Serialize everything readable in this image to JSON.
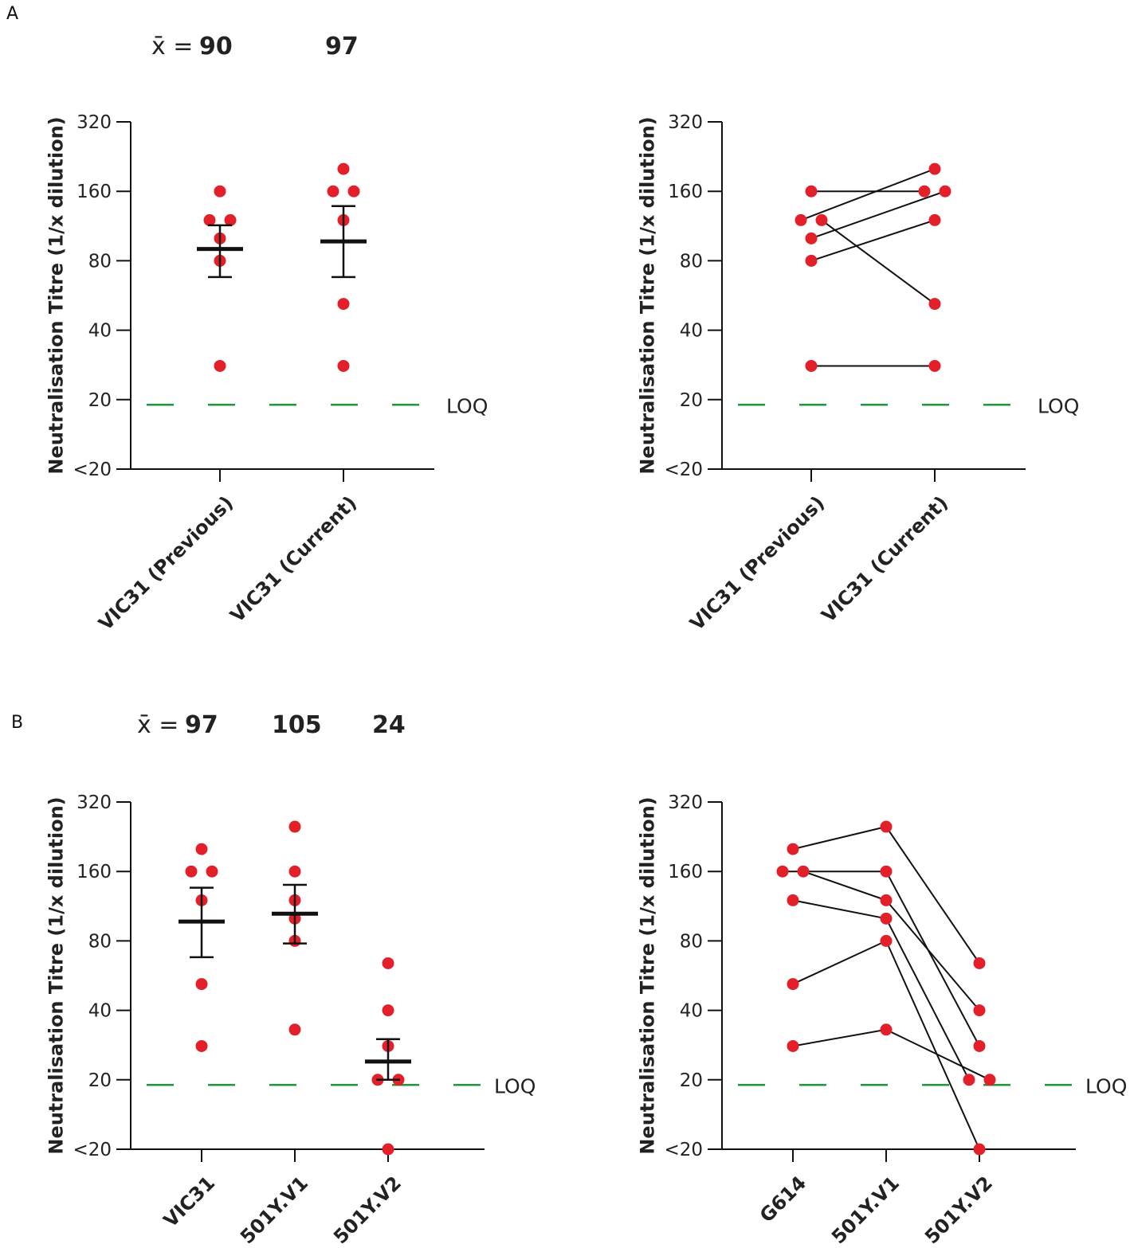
{
  "panels": [
    {
      "label": "A"
    },
    {
      "label": "B"
    }
  ],
  "means": {
    "symbol": "x̄ =",
    "A": [
      "90",
      "97"
    ],
    "B": [
      "97",
      "105",
      "24"
    ]
  },
  "colors": {
    "point": "#e3202a",
    "loq": "#1f9a3a",
    "axis": "#111111",
    "line": "#111111"
  },
  "chart_data": [
    {
      "id": "A-left",
      "type": "scatter",
      "ylabel": "Neutralisation Titre (1/x dilution)",
      "yscale": "log2",
      "yticks": [
        {
          "v": 10,
          "label": "<20"
        },
        {
          "v": 20,
          "label": "20"
        },
        {
          "v": 40,
          "label": "40"
        },
        {
          "v": 80,
          "label": "80"
        },
        {
          "v": 160,
          "label": "160"
        },
        {
          "v": 320,
          "label": "320"
        }
      ],
      "ylim": [
        10,
        320
      ],
      "loq": {
        "value": 19,
        "label": "LOQ"
      },
      "categories": [
        "VIC31 (Previous)",
        "VIC31 (Current)"
      ],
      "points": [
        [
          {
            "v": 160,
            "dx": 0
          },
          {
            "v": 120,
            "dx": -1
          },
          {
            "v": 120,
            "dx": 1
          },
          {
            "v": 100,
            "dx": 0
          },
          {
            "v": 80,
            "dx": 0
          },
          {
            "v": 28,
            "dx": 0
          }
        ],
        [
          {
            "v": 200,
            "dx": 0
          },
          {
            "v": 160,
            "dx": -1
          },
          {
            "v": 160,
            "dx": 1
          },
          {
            "v": 120,
            "dx": 0
          },
          {
            "v": 52,
            "dx": 0
          },
          {
            "v": 28,
            "dx": 0
          }
        ]
      ],
      "mean": [
        90,
        97
      ],
      "err_low": [
        68,
        68
      ],
      "err_high": [
        114,
        138
      ]
    },
    {
      "id": "A-right",
      "type": "line",
      "ylabel": "Neutralisation Titre (1/x dilution)",
      "yscale": "log2",
      "yticks": [
        {
          "v": 10,
          "label": "<20"
        },
        {
          "v": 20,
          "label": "20"
        },
        {
          "v": 40,
          "label": "40"
        },
        {
          "v": 80,
          "label": "80"
        },
        {
          "v": 160,
          "label": "160"
        },
        {
          "v": 320,
          "label": "320"
        }
      ],
      "ylim": [
        10,
        320
      ],
      "loq": {
        "value": 19,
        "label": "LOQ"
      },
      "categories": [
        "VIC31 (Previous)",
        "VIC31 (Current)"
      ],
      "subjects": [
        [
          {
            "v": 160,
            "dx": 0
          },
          {
            "v": 160,
            "dx": -1
          }
        ],
        [
          {
            "v": 120,
            "dx": -1
          },
          {
            "v": 200,
            "dx": 0
          }
        ],
        [
          {
            "v": 100,
            "dx": 0
          },
          {
            "v": 160,
            "dx": 1
          }
        ],
        [
          {
            "v": 80,
            "dx": 0
          },
          {
            "v": 120,
            "dx": 0
          }
        ],
        [
          {
            "v": 120,
            "dx": 1
          },
          {
            "v": 52,
            "dx": 0
          }
        ],
        [
          {
            "v": 28,
            "dx": 0
          },
          {
            "v": 28,
            "dx": 0
          }
        ]
      ]
    },
    {
      "id": "B-left",
      "type": "scatter",
      "ylabel": "Neutralisation Titre (1/x dilution)",
      "yscale": "log2",
      "yticks": [
        {
          "v": 10,
          "label": "<20"
        },
        {
          "v": 20,
          "label": "20"
        },
        {
          "v": 40,
          "label": "40"
        },
        {
          "v": 80,
          "label": "80"
        },
        {
          "v": 160,
          "label": "160"
        },
        {
          "v": 320,
          "label": "320"
        }
      ],
      "ylim": [
        10,
        320
      ],
      "loq": {
        "value": 19,
        "label": "LOQ"
      },
      "categories": [
        "VIC31",
        "501Y.V1",
        "501Y.V2"
      ],
      "points": [
        [
          {
            "v": 200,
            "dx": 0
          },
          {
            "v": 160,
            "dx": -1
          },
          {
            "v": 160,
            "dx": 1
          },
          {
            "v": 120,
            "dx": 0
          },
          {
            "v": 52,
            "dx": 0
          },
          {
            "v": 28,
            "dx": 0
          }
        ],
        [
          {
            "v": 250,
            "dx": 0
          },
          {
            "v": 160,
            "dx": 0
          },
          {
            "v": 120,
            "dx": 0
          },
          {
            "v": 100,
            "dx": 0
          },
          {
            "v": 80,
            "dx": 0
          },
          {
            "v": 33,
            "dx": 0
          }
        ],
        [
          {
            "v": 64,
            "dx": 0
          },
          {
            "v": 40,
            "dx": 0
          },
          {
            "v": 28,
            "dx": 0
          },
          {
            "v": 20,
            "dx": -1
          },
          {
            "v": 20,
            "dx": 1
          },
          {
            "v": 10,
            "dx": 0
          }
        ]
      ],
      "mean": [
        97,
        105,
        24
      ],
      "err_low": [
        68,
        78,
        20
      ],
      "err_high": [
        136,
        140,
        30
      ]
    },
    {
      "id": "B-right",
      "type": "line",
      "ylabel": "Neutralisation Titre (1/x dilution)",
      "yscale": "log2",
      "yticks": [
        {
          "v": 10,
          "label": "<20"
        },
        {
          "v": 20,
          "label": "20"
        },
        {
          "v": 40,
          "label": "40"
        },
        {
          "v": 80,
          "label": "80"
        },
        {
          "v": 160,
          "label": "160"
        },
        {
          "v": 320,
          "label": "320"
        }
      ],
      "ylim": [
        10,
        320
      ],
      "loq": {
        "value": 19,
        "label": "LOQ"
      },
      "categories": [
        "G614",
        "501Y.V1",
        "501Y.V2"
      ],
      "subjects": [
        [
          {
            "v": 200,
            "dx": 0
          },
          {
            "v": 250,
            "dx": 0
          },
          {
            "v": 64,
            "dx": 0
          }
        ],
        [
          {
            "v": 160,
            "dx": -1
          },
          {
            "v": 160,
            "dx": 0
          },
          {
            "v": 28,
            "dx": 0
          }
        ],
        [
          {
            "v": 160,
            "dx": 1
          },
          {
            "v": 120,
            "dx": 0
          },
          {
            "v": 40,
            "dx": 0
          }
        ],
        [
          {
            "v": 120,
            "dx": 0
          },
          {
            "v": 100,
            "dx": 0
          },
          {
            "v": 20,
            "dx": -1
          }
        ],
        [
          {
            "v": 52,
            "dx": 0
          },
          {
            "v": 80,
            "dx": 0
          },
          {
            "v": 10,
            "dx": 0
          }
        ],
        [
          {
            "v": 28,
            "dx": 0
          },
          {
            "v": 33,
            "dx": 0
          },
          {
            "v": 20,
            "dx": 1
          }
        ]
      ]
    }
  ]
}
